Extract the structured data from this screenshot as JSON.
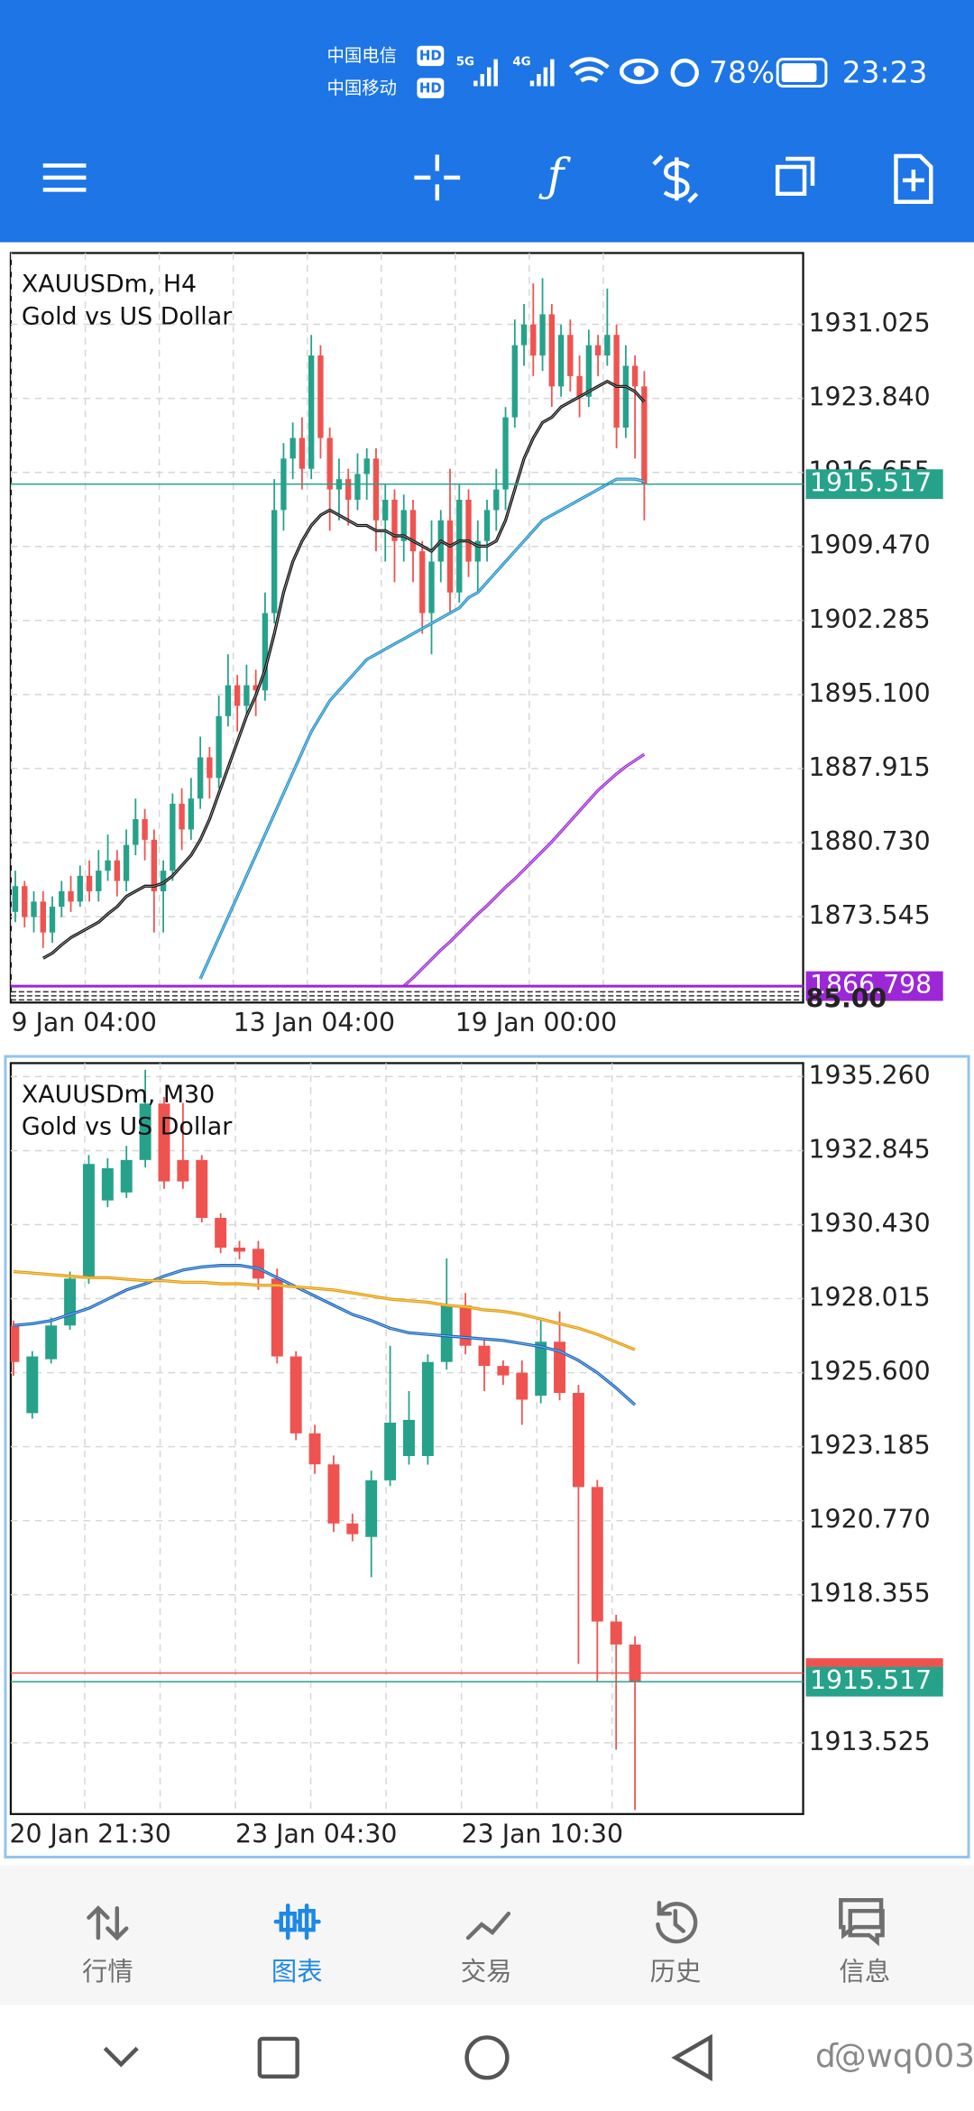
{
  "status_bar": {
    "carrier_1": "中国电信",
    "carrier_2": "中国移动",
    "hd": "HD",
    "net_1": "5G",
    "net_2": "4G",
    "battery": "78%",
    "time": "23:23"
  },
  "nav": {
    "items": [
      "行情",
      "图表",
      "交易",
      "历史",
      "信息"
    ],
    "active": 1
  },
  "watermark": "@wq003",
  "chart_data": [
    {
      "type": "candlestick",
      "title": "XAUUSDm, H4",
      "subtitle": "Gold vs US Dollar",
      "categories": [
        "9 Jan 04:00",
        null,
        null,
        null,
        null,
        null,
        null,
        null,
        null,
        null,
        null,
        null,
        null,
        null,
        null,
        null,
        null,
        null,
        null,
        null,
        null,
        null,
        null,
        null,
        "13 Jan 04:00",
        null,
        null,
        null,
        null,
        null,
        null,
        null,
        null,
        null,
        null,
        null,
        null,
        null,
        null,
        null,
        null,
        null,
        null,
        null,
        null,
        null,
        null,
        null,
        "19 Jan 00:00",
        null,
        null,
        null,
        null,
        null,
        null,
        null,
        null,
        null,
        null,
        null,
        null,
        null,
        null,
        null,
        null,
        null,
        null,
        null,
        null
      ],
      "open": [
        1874,
        1876.5,
        1873.5,
        1875,
        1872,
        1874.5,
        1876,
        1875,
        1877.5,
        1876,
        1878,
        1879,
        1877,
        1880.5,
        1883,
        1881,
        1876,
        1878,
        1884.5,
        1882,
        1885,
        1889,
        1887,
        1893,
        1896,
        1894,
        1896,
        1895.5,
        1903,
        1913,
        1918,
        1920,
        1917,
        1928,
        1920,
        1915,
        1916,
        1914,
        1916.5,
        1918,
        1912,
        1914,
        1910,
        1913,
        1909,
        1903,
        1908,
        1912,
        1905,
        1914,
        1908,
        1910,
        1913,
        1915,
        1922,
        1929,
        1931,
        1928,
        1932,
        1925,
        1930,
        1926,
        1924,
        1929,
        1928,
        1930,
        1921,
        1927,
        1925
      ],
      "high": [
        1878,
        1877,
        1876,
        1876,
        1875.5,
        1877,
        1877.5,
        1878.5,
        1879,
        1880,
        1881.5,
        1880,
        1882,
        1885,
        1884,
        1882,
        1879,
        1885.5,
        1886,
        1887,
        1891,
        1890,
        1895,
        1899,
        1897,
        1898,
        1897.5,
        1905,
        1916,
        1919.5,
        1921.5,
        1922,
        1930,
        1929,
        1921,
        1918,
        1917,
        1918.5,
        1919,
        1919,
        1915.5,
        1915,
        1914.5,
        1914,
        1910,
        1912,
        1913,
        1917,
        1915.5,
        1915,
        1912,
        1914,
        1917,
        1923,
        1931.5,
        1933,
        1935,
        1935.5,
        1933,
        1931,
        1931.5,
        1928,
        1930.5,
        1930,
        1934.5,
        1931,
        1929,
        1928,
        1926.5
      ],
      "low": [
        1873,
        1872.5,
        1872,
        1870.5,
        1871,
        1873.5,
        1874,
        1874.5,
        1875,
        1875,
        1877,
        1875.5,
        1876,
        1879.5,
        1879,
        1872,
        1872,
        1877,
        1880,
        1881,
        1884,
        1885,
        1886,
        1892,
        1891.5,
        1893,
        1893,
        1894.5,
        1902,
        1911,
        1916,
        1915,
        1916,
        1918,
        1911,
        1912,
        1911.5,
        1913,
        1914,
        1909,
        1908,
        1906,
        1908,
        1906,
        1901,
        1899,
        1906,
        1903,
        1904,
        1906.5,
        1905,
        1908,
        1911,
        1913,
        1921,
        1927,
        1926,
        1926.5,
        1923,
        1924,
        1924.5,
        1922,
        1923,
        1926,
        1927,
        1919,
        1920,
        1918,
        1912
      ],
      "close": [
        1876.5,
        1873.5,
        1875,
        1872,
        1874.5,
        1876,
        1875,
        1877.5,
        1876,
        1878,
        1879,
        1877,
        1880.5,
        1883,
        1881,
        1876,
        1878,
        1884.5,
        1882,
        1885,
        1889,
        1887,
        1893,
        1896,
        1894,
        1896,
        1895.5,
        1903,
        1913,
        1918,
        1920,
        1917,
        1928,
        1920,
        1915,
        1916,
        1914,
        1916.5,
        1918,
        1912,
        1914,
        1910,
        1913,
        1909,
        1903,
        1908,
        1912,
        1905,
        1914,
        1908,
        1910,
        1913,
        1915,
        1922,
        1929,
        1931,
        1928,
        1932,
        1925,
        1930,
        1926,
        1924,
        1929,
        1928,
        1930,
        1921,
        1927,
        1925,
        1915.517
      ],
      "up_color": "#26a28b",
      "down_color": "#ef5350",
      "series": [
        {
          "color": "#111111",
          "values": [
            null,
            null,
            null,
            1869.5,
            1870,
            1870.8,
            1871.5,
            1872,
            1872.5,
            1873,
            1873.8,
            1874.5,
            1875.5,
            1876,
            1876.5,
            1876.5,
            1876.8,
            1877.5,
            1878.5,
            1879.5,
            1881,
            1883,
            1885.5,
            1888,
            1890.5,
            1893,
            1895,
            1897.5,
            1901,
            1905,
            1908,
            1910,
            1911.5,
            1912.5,
            1913,
            1912.5,
            1912,
            1911.5,
            1911.5,
            1911,
            1911,
            1910.5,
            1910.5,
            1910,
            1909.5,
            1909,
            1910,
            1909.5,
            1910,
            1910,
            1909.5,
            1909.5,
            1910,
            1912,
            1915,
            1918,
            1920,
            1921.5,
            1922,
            1923,
            1923.5,
            1924,
            1924.5,
            1925,
            1925.5,
            1925,
            1925,
            1924.5,
            1923.5
          ]
        },
        {
          "color": "#1e90c8",
          "values": [
            null,
            null,
            null,
            null,
            null,
            null,
            null,
            null,
            null,
            null,
            null,
            null,
            null,
            null,
            null,
            null,
            null,
            null,
            null,
            null,
            1867.5,
            1869.5,
            1871.5,
            1873.5,
            1875.5,
            1877.5,
            1879.5,
            1881.5,
            1883.5,
            1885.5,
            1887.5,
            1889.5,
            1891.5,
            1893,
            1894.5,
            1895.5,
            1896.5,
            1897.5,
            1898.5,
            1899,
            1899.5,
            1900,
            1900.5,
            1901,
            1901.5,
            1902,
            1902.5,
            1903,
            1903.5,
            1904.5,
            1905,
            1906,
            1907,
            1908,
            1909,
            1910,
            1911,
            1912,
            1912.5,
            1913,
            1913.5,
            1914,
            1914.5,
            1915,
            1915.5,
            1916,
            1916,
            1916,
            1915.8
          ]
        },
        {
          "color": "#9c27d6",
          "values": [
            null,
            null,
            null,
            null,
            null,
            null,
            null,
            null,
            null,
            null,
            null,
            null,
            null,
            null,
            null,
            null,
            null,
            null,
            null,
            null,
            null,
            null,
            null,
            null,
            null,
            null,
            null,
            null,
            null,
            null,
            null,
            null,
            null,
            null,
            null,
            null,
            null,
            null,
            null,
            null,
            null,
            null,
            1866.8,
            1867.6,
            1868.5,
            1869.4,
            1870.3,
            1871.1,
            1872,
            1872.9,
            1873.8,
            1874.6,
            1875.5,
            1876.4,
            1877.2,
            1878.1,
            1879,
            1879.9,
            1880.8,
            1881.8,
            1882.8,
            1883.8,
            1884.8,
            1885.8,
            1886.6,
            1887.4,
            1888.1,
            1888.7,
            1889.3
          ]
        }
      ],
      "ylim": [
        1865.2,
        1937.95
      ],
      "yticks": [
        1931.025,
        {
          "value": 1923.84,
          "label": "1923.840"
        },
        1916.655,
        {
          "value": 1909.47,
          "label": "1909.470"
        },
        1902.285,
        {
          "value": 1895.1,
          "label": "1895.100"
        },
        1887.915,
        {
          "value": 1880.73,
          "label": "1880.730"
        },
        1873.545
      ],
      "grid": true,
      "bid": 1915.517,
      "bid_color": "#26a28b",
      "indicator_label": 1866.798,
      "indicator_color": "#9c27d6",
      "axis_overlap_label": "85.00"
    },
    {
      "type": "candlestick",
      "title": "XAUUSDm, M30",
      "subtitle": "Gold vs US Dollar",
      "categories": [
        "20 Jan 21:30",
        null,
        null,
        null,
        null,
        null,
        null,
        null,
        null,
        null,
        null,
        null,
        "23 Jan 04:30",
        null,
        null,
        null,
        null,
        null,
        null,
        null,
        null,
        null,
        null,
        null,
        "23 Jan 10:30",
        null,
        null,
        null,
        null,
        null,
        null,
        null,
        null,
        null
      ],
      "open": [
        1927.14,
        1924.28,
        1926.04,
        1927.14,
        1928.67,
        1931.22,
        1931.48,
        1932.54,
        1934.38,
        1932.54,
        1932.54,
        1930.65,
        1929.68,
        1929.64,
        1928.67,
        1926.13,
        1923.62,
        1922.61,
        1920.68,
        1920.24,
        1922.09,
        1922.88,
        1922.88,
        1925.95,
        1927.79,
        1926.48,
        1925.82,
        1925.6,
        1924.85,
        1926.61,
        1924.94,
        1921.87,
        1917.48,
        1916.73
      ],
      "high": [
        1927.3,
        1926.3,
        1927.4,
        1928.9,
        1932.7,
        1932.6,
        1933.0,
        1935.48,
        1934.6,
        1934.4,
        1932.7,
        1930.8,
        1929.9,
        1929.9,
        1929.0,
        1926.3,
        1923.9,
        1922.9,
        1921.0,
        1922.4,
        1926.48,
        1925.0,
        1926.2,
        1929.33,
        1928.2,
        1926.7,
        1926.0,
        1926.0,
        1927.3,
        1927.6,
        1925.2,
        1922.1,
        1917.7,
        1917.0
      ],
      "low": [
        1925.5,
        1924.1,
        1925.9,
        1927.0,
        1928.5,
        1931.0,
        1931.3,
        1932.3,
        1931.6,
        1931.6,
        1930.5,
        1929.5,
        1929.3,
        1928.3,
        1925.9,
        1923.4,
        1922.3,
        1920.4,
        1920.1,
        1918.93,
        1921.9,
        1922.6,
        1922.6,
        1925.7,
        1926.2,
        1925.0,
        1925.2,
        1923.9,
        1924.6,
        1924.7,
        1916.1,
        1915.5,
        1913.3,
        1911.33
      ],
      "close": [
        1925.95,
        1926.13,
        1927.14,
        1928.67,
        1932.41,
        1932.27,
        1932.54,
        1934.38,
        1931.84,
        1931.84,
        1930.65,
        1929.68,
        1929.55,
        1928.67,
        1926.13,
        1923.62,
        1922.61,
        1920.68,
        1920.33,
        1922.09,
        1923.97,
        1924.06,
        1925.95,
        1927.79,
        1926.48,
        1925.82,
        1925.51,
        1924.72,
        1926.61,
        1924.94,
        1921.87,
        1917.48,
        1916.73,
        1915.517
      ],
      "up_color": "#26a28b",
      "down_color": "#ef5350",
      "series": [
        {
          "color": "#1565c0",
          "values": [
            1927.14,
            1927.2,
            1927.3,
            1927.5,
            1927.7,
            1928.0,
            1928.3,
            1928.5,
            1928.75,
            1928.95,
            1929.05,
            1929.1,
            1929.1,
            1929.0,
            1928.7,
            1928.4,
            1928.1,
            1927.8,
            1927.5,
            1927.3,
            1927.05,
            1926.9,
            1926.85,
            1926.8,
            1926.75,
            1926.7,
            1926.65,
            1926.55,
            1926.45,
            1926.3,
            1926.0,
            1925.6,
            1925.1,
            1924.55
          ]
        },
        {
          "color": "#e69b00",
          "values": [
            1928.9,
            1928.85,
            1928.8,
            1928.75,
            1928.7,
            1928.7,
            1928.65,
            1928.6,
            1928.6,
            1928.55,
            1928.55,
            1928.5,
            1928.5,
            1928.45,
            1928.45,
            1928.4,
            1928.35,
            1928.3,
            1928.2,
            1928.1,
            1928.0,
            1927.95,
            1927.9,
            1927.8,
            1927.75,
            1927.65,
            1927.6,
            1927.5,
            1927.35,
            1927.2,
            1927.05,
            1926.85,
            1926.6,
            1926.35
          ]
        }
      ],
      "ylim": [
        1911.2,
        1935.7
      ],
      "yticks": [
        {
          "value": 1935.26,
          "label": "1935.260"
        },
        1932.845,
        {
          "value": 1930.43,
          "label": "1930.430"
        },
        1928.015,
        {
          "value": 1925.6,
          "label": "1925.600"
        },
        1923.185,
        {
          "value": 1920.77,
          "label": "1920.770"
        },
        1918.355,
        1913.525
      ],
      "grid": true,
      "bid": 1915.517,
      "bid_color": "#26a28b",
      "ask": 1915.8,
      "ask_color": "#ef5350"
    }
  ]
}
